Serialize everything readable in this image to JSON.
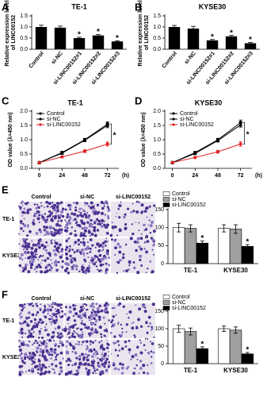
{
  "chart_data": [
    {
      "panel": "A",
      "type": "bar",
      "title": "TE-1",
      "ylabel": "Relative expression level of LINC00152",
      "categories": [
        "Control",
        "si-NC",
        "si-LINC00152#1",
        "si-LINC00152#2",
        "si-LINC00152#3"
      ],
      "values": [
        1.0,
        0.97,
        0.5,
        0.62,
        0.35
      ],
      "errors": [
        0.08,
        0.07,
        0.04,
        0.04,
        0.03
      ],
      "significance": [
        null,
        null,
        "*",
        "*",
        "*"
      ],
      "color": "#000000",
      "ylim": [
        0,
        1.5
      ],
      "yticks": [
        {
          "value": 0,
          "label": "0.0"
        },
        0.5,
        {
          "value": 1,
          "label": "1.0"
        },
        1.5
      ]
    },
    {
      "panel": "B",
      "type": "bar",
      "title": "KYSE30",
      "ylabel": "Relative expression level of LINC00152",
      "categories": [
        "Control",
        "si-NC",
        "si-LINC00152#1",
        "si-LINC00152#2",
        "si-LINC00152#3"
      ],
      "values": [
        1.0,
        0.93,
        0.4,
        0.58,
        0.27
      ],
      "errors": [
        0.07,
        0.1,
        0.04,
        0.04,
        0.03
      ],
      "significance": [
        null,
        null,
        "*",
        "*",
        "*"
      ],
      "color": "#000000",
      "ylim": [
        0,
        1.5
      ],
      "yticks": [
        {
          "value": 0,
          "label": "0.0"
        },
        0.5,
        {
          "value": 1,
          "label": "1.0"
        },
        1.5
      ]
    },
    {
      "panel": "C",
      "type": "line",
      "title": "TE-1",
      "ylabel": "OD value (λ=450 nm)",
      "xlabel": "(h)",
      "x": [
        0,
        24,
        48,
        72
      ],
      "series": [
        {
          "name": "Control",
          "color": "#000000",
          "marker": "square",
          "values": [
            0.2,
            0.55,
            1.0,
            1.55
          ],
          "errors": [
            0.02,
            0.04,
            0.05,
            0.08
          ]
        },
        {
          "name": "si-NC",
          "color": "#000000",
          "marker": "triangle",
          "values": [
            0.2,
            0.53,
            0.98,
            1.5
          ],
          "errors": [
            0.02,
            0.04,
            0.05,
            0.08
          ]
        },
        {
          "name": "si-LINC00152",
          "color": "#e02020",
          "marker": "circle",
          "values": [
            0.2,
            0.4,
            0.6,
            0.85
          ],
          "errors": [
            0.02,
            0.03,
            0.05,
            0.07
          ]
        }
      ],
      "significance": "*",
      "xlim": [
        -8,
        84
      ],
      "xticks": [
        0,
        24,
        48,
        72
      ],
      "ylim": [
        0,
        2
      ],
      "yticks": [
        {
          "value": 0,
          "label": "0.0"
        },
        0.5,
        {
          "value": 1,
          "label": "1.0"
        },
        1.5,
        {
          "value": 2,
          "label": "2.0"
        }
      ]
    },
    {
      "panel": "D",
      "type": "line",
      "title": "KYSE30",
      "ylabel": "OD value (λ=450 nm)",
      "xlabel": "(h)",
      "x": [
        0,
        24,
        48,
        72
      ],
      "series": [
        {
          "name": "Control",
          "color": "#000000",
          "marker": "square",
          "values": [
            0.2,
            0.55,
            1.0,
            1.6
          ],
          "errors": [
            0.02,
            0.04,
            0.05,
            0.09
          ]
        },
        {
          "name": "si-NC",
          "color": "#000000",
          "marker": "triangle",
          "values": [
            0.2,
            0.52,
            0.97,
            1.52
          ],
          "errors": [
            0.02,
            0.04,
            0.05,
            0.08
          ]
        },
        {
          "name": "si-LINC00152",
          "color": "#e02020",
          "marker": "circle",
          "values": [
            0.2,
            0.38,
            0.58,
            0.85
          ],
          "errors": [
            0.02,
            0.03,
            0.05,
            0.08
          ]
        }
      ],
      "significance": "*",
      "xlim": [
        -8,
        84
      ],
      "xticks": [
        0,
        24,
        48,
        72
      ],
      "ylim": [
        0,
        2
      ],
      "yticks": [
        {
          "value": 0,
          "label": "0.0"
        },
        0.5,
        {
          "value": 1,
          "label": "1.0"
        },
        1.5,
        {
          "value": 2,
          "label": "2.0"
        }
      ]
    },
    {
      "panel": "E",
      "type": "grouped_bar",
      "ylabel": "Cell migration ability (%)",
      "image_columns": [
        "Control",
        "si-NC",
        "si-LINC00152"
      ],
      "image_rows": [
        "TE-1",
        "KYSE30"
      ],
      "categories": [
        "TE-1",
        "KYSE30"
      ],
      "series": [
        {
          "name": "Control",
          "color": "#ffffff",
          "values": [
            100,
            98
          ],
          "errors": [
            12,
            10
          ]
        },
        {
          "name": "si-NC",
          "color": "#a0a0a0",
          "values": [
            98,
            96
          ],
          "errors": [
            10,
            12
          ]
        },
        {
          "name": "si-LINC00152",
          "color": "#000000",
          "values": [
            57,
            48
          ],
          "errors": [
            6,
            5
          ],
          "significance": [
            "*",
            "*"
          ]
        }
      ],
      "ylim": [
        0,
        150
      ],
      "yticks": [
        0,
        50,
        100,
        150
      ]
    },
    {
      "panel": "F",
      "type": "grouped_bar",
      "ylabel": "Cell invasion ability (%)",
      "image_columns": [
        "Control",
        "si-NC",
        "si-LINC00152"
      ],
      "image_rows": [
        "TE-1",
        "KYSE30"
      ],
      "categories": [
        "TE-1",
        "KYSE30"
      ],
      "series": [
        {
          "name": "Control",
          "color": "#ffffff",
          "values": [
            100,
            100
          ],
          "errors": [
            10,
            8
          ]
        },
        {
          "name": "si-NC",
          "color": "#a0a0a0",
          "values": [
            92,
            96
          ],
          "errors": [
            10,
            9
          ]
        },
        {
          "name": "si-LINC00152",
          "color": "#000000",
          "values": [
            43,
            28
          ],
          "errors": [
            5,
            4
          ],
          "significance": [
            "*",
            "*"
          ]
        }
      ],
      "ylim": [
        0,
        150
      ],
      "yticks": [
        0,
        50,
        100,
        150
      ]
    }
  ]
}
